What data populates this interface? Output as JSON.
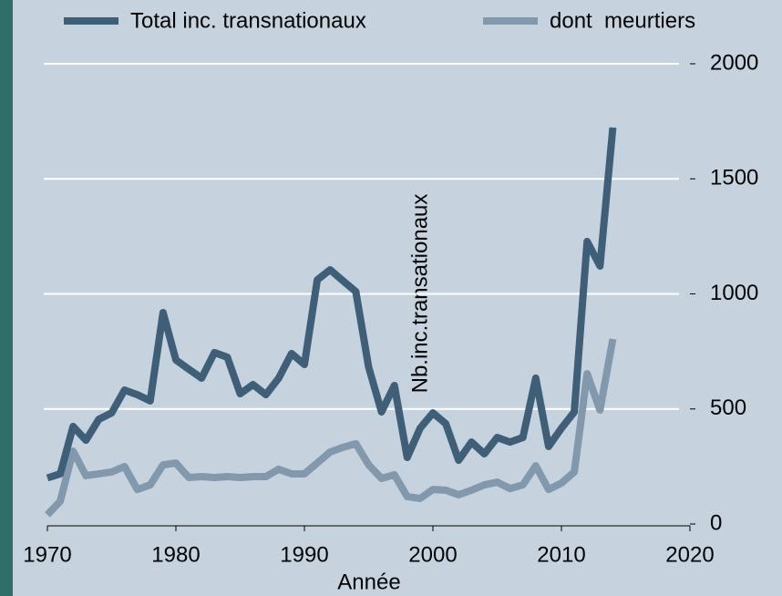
{
  "chart_data": {
    "type": "line",
    "y_label": "Nb.inc.transationaux",
    "x_label": "Année",
    "x": [
      1970,
      1971,
      1972,
      1973,
      1974,
      1975,
      1976,
      1977,
      1978,
      1979,
      1980,
      1981,
      1982,
      1983,
      1984,
      1985,
      1986,
      1987,
      1988,
      1989,
      1990,
      1991,
      1992,
      1993,
      1994,
      1995,
      1996,
      1997,
      1998,
      1999,
      2000,
      2001,
      2002,
      2003,
      2004,
      2005,
      2006,
      2007,
      2008,
      2009,
      2010,
      2011,
      2012,
      2013,
      2014
    ],
    "series": [
      {
        "name": "Total inc. transnationaux",
        "color": "#3f5f79",
        "values": [
          200,
          218,
          424,
          364,
          455,
          483,
          582,
          562,
          535,
          919,
          713,
          673,
          634,
          745,
          725,
          566,
          606,
          562,
          634,
          741,
          693,
          1061,
          1105,
          1057,
          1010,
          681,
          487,
          602,
          289,
          416,
          483,
          436,
          277,
          356,
          305,
          376,
          356,
          376,
          634,
          337,
          416,
          487,
          1228,
          1121,
          1723
        ]
      },
      {
        "name": "dont  meurtiers",
        "color": "#8198ad",
        "values": [
          40,
          99,
          317,
          210,
          218,
          226,
          250,
          150,
          170,
          257,
          265,
          202,
          206,
          202,
          206,
          202,
          206,
          206,
          238,
          218,
          218,
          265,
          313,
          333,
          349,
          257,
          198,
          214,
          119,
          111,
          150,
          147,
          127,
          147,
          170,
          182,
          154,
          170,
          253,
          150,
          178,
          226,
          653,
          495,
          804
        ]
      }
    ],
    "xlim": [
      1970,
      2020
    ],
    "xticks": [
      1970,
      1980,
      1990,
      2000,
      2010,
      2020
    ],
    "ylim": [
      0,
      2000
    ],
    "yticks": [
      0,
      500,
      1000,
      1500,
      2000
    ],
    "grid": true,
    "legend": "top"
  }
}
